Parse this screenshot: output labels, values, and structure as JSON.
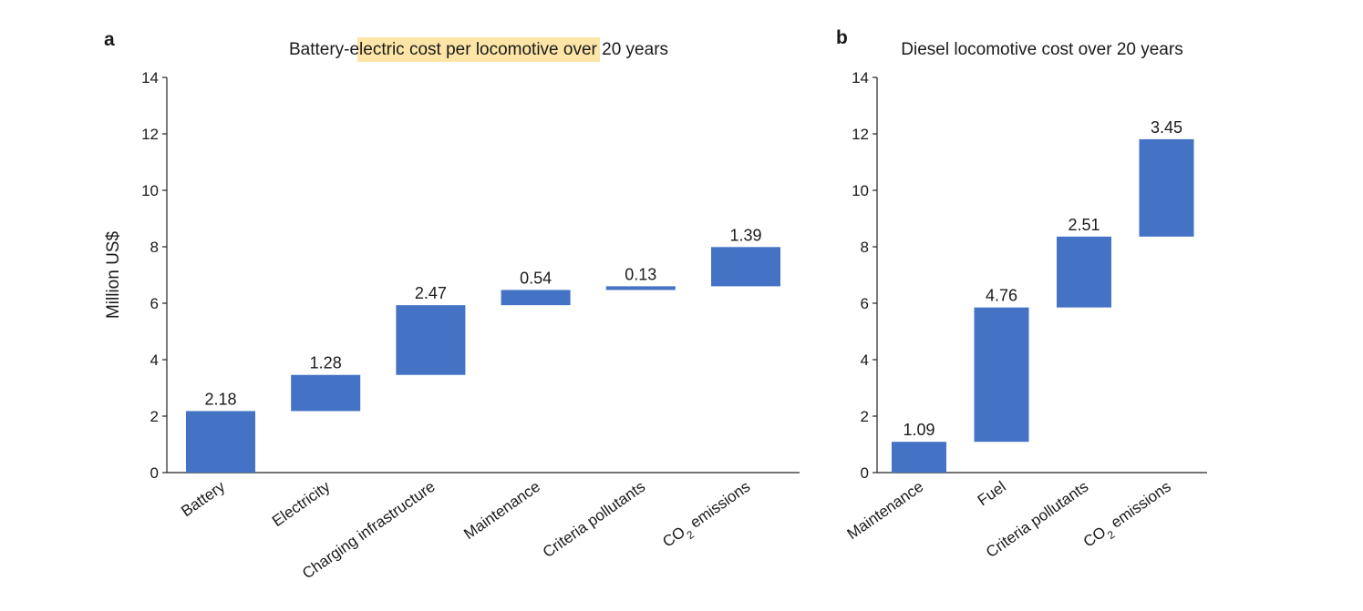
{
  "chart_data": [
    {
      "type": "waterfall",
      "panel": "a",
      "title": "Battery-electric cost per locomotive over 20 years",
      "highlight": "#FCE5A6",
      "ylabel": "Million US$",
      "ylim": [
        0,
        14
      ],
      "yticks": [
        0,
        2,
        4,
        6,
        8,
        10,
        12,
        14
      ],
      "categories": [
        {
          "pre": "Battery",
          "sub": "",
          "post": ""
        },
        {
          "pre": "Electricity",
          "sub": "",
          "post": ""
        },
        {
          "pre": "Charging infrastructure",
          "sub": "",
          "post": ""
        },
        {
          "pre": "Maintenance",
          "sub": "",
          "post": ""
        },
        {
          "pre": "Criteria pollutants",
          "sub": "",
          "post": ""
        },
        {
          "pre": "CO",
          "sub": "2",
          "post": " emissions"
        }
      ],
      "values": [
        2.18,
        1.28,
        2.47,
        0.54,
        0.13,
        1.39
      ],
      "data_labels": [
        "2.18",
        "1.28",
        "2.47",
        "0.54",
        "0.13",
        "1.39"
      ],
      "color": "#4472C4"
    },
    {
      "type": "waterfall",
      "panel": "b",
      "title": "Diesel locomotive cost over 20 years",
      "ylabel": "",
      "ylim": [
        0,
        14
      ],
      "yticks": [
        0,
        2,
        4,
        6,
        8,
        10,
        12,
        14
      ],
      "categories": [
        {
          "pre": "Maintenance",
          "sub": "",
          "post": ""
        },
        {
          "pre": "Fuel",
          "sub": "",
          "post": ""
        },
        {
          "pre": "Criteria pollutants",
          "sub": "",
          "post": ""
        },
        {
          "pre": "CO",
          "sub": "2",
          "post": " emissions"
        }
      ],
      "values": [
        1.09,
        4.76,
        2.51,
        3.45
      ],
      "data_labels": [
        "1.09",
        "4.76",
        "2.51",
        "3.45"
      ],
      "color": "#4472C4"
    }
  ]
}
